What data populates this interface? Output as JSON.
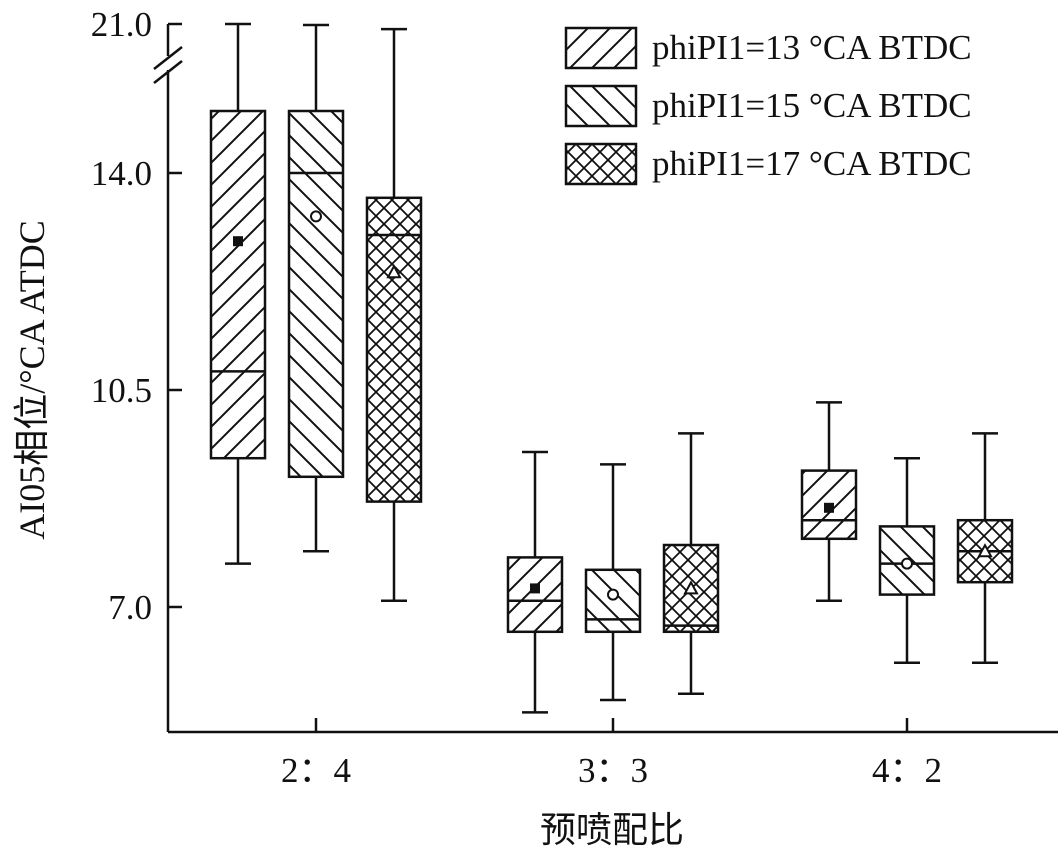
{
  "chart_data": {
    "type": "box",
    "xlabel": "预喷配比",
    "ylabel": "AI05相位/°CA ATDC",
    "categories": [
      "2：4",
      "3：3",
      "4：2"
    ],
    "y_ticks": [
      "7.0",
      "10.5",
      "14.0",
      "21.0"
    ],
    "y_axis_break": {
      "lower_segment_max": 15.5,
      "upper_tick": 21.0
    },
    "legend_position": "top-right",
    "series": [
      {
        "name": "phiPI1=13 °CA BTDC",
        "pattern": "diagonal-hatch",
        "mean_marker": "square",
        "boxes": [
          {
            "whisker_low": 7.7,
            "q1": 9.4,
            "median": 10.8,
            "q3": 15.0,
            "whisker_high": 21.0,
            "mean": 12.9
          },
          {
            "whisker_low": 5.3,
            "q1": 6.6,
            "median": 7.1,
            "q3": 7.8,
            "whisker_high": 9.5,
            "mean": 7.3
          },
          {
            "whisker_low": 7.1,
            "q1": 8.1,
            "median": 8.4,
            "q3": 9.2,
            "whisker_high": 10.3,
            "mean": 8.6
          }
        ]
      },
      {
        "name": "phiPI1=15 °CA BTDC",
        "pattern": "back-diagonal-hatch",
        "mean_marker": "circle",
        "boxes": [
          {
            "whisker_low": 7.9,
            "q1": 9.1,
            "median": 14.0,
            "q3": 15.0,
            "whisker_high": 20.9,
            "mean": 13.3
          },
          {
            "whisker_low": 5.5,
            "q1": 6.6,
            "median": 6.8,
            "q3": 7.6,
            "whisker_high": 9.3,
            "mean": 7.2
          },
          {
            "whisker_low": 6.1,
            "q1": 7.2,
            "median": 7.7,
            "q3": 8.3,
            "whisker_high": 9.4,
            "mean": 7.7
          }
        ]
      },
      {
        "name": "phiPI1=17 °CA BTDC",
        "pattern": "cross-hatch",
        "mean_marker": "triangle",
        "boxes": [
          {
            "whisker_low": 7.1,
            "q1": 8.7,
            "median": 13.0,
            "q3": 13.6,
            "whisker_high": 20.5,
            "mean": 12.4
          },
          {
            "whisker_low": 5.6,
            "q1": 6.6,
            "median": 6.7,
            "q3": 8.0,
            "whisker_high": 9.8,
            "mean": 7.3
          },
          {
            "whisker_low": 6.1,
            "q1": 7.4,
            "median": 7.9,
            "q3": 8.4,
            "whisker_high": 9.8,
            "mean": 7.9
          }
        ]
      }
    ]
  }
}
